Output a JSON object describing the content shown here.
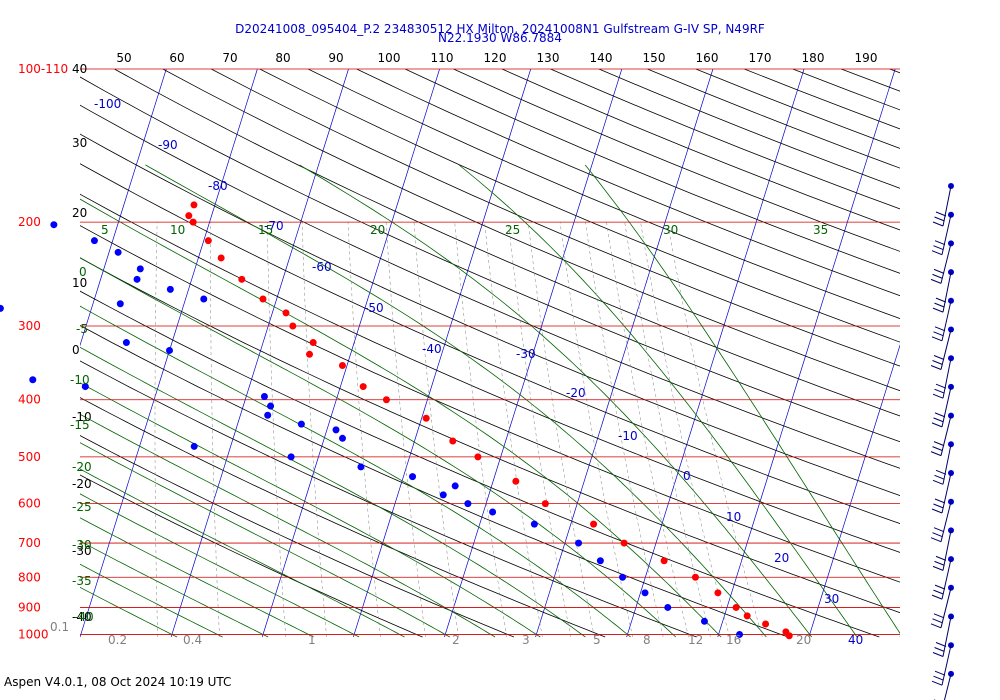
{
  "title": {
    "line1": "D20241008_095404_P.2 234830512 HX Milton, 20241008N1 Gulfstream G-IV SP, N49RF",
    "line2": "N22.1930 W86.7884"
  },
  "footer": "Aspen V4.0.1, 08 Oct 2024  10:19 UTC",
  "chart_data": {
    "type": "skew-t",
    "pressure_labels": [
      "100-110",
      "200",
      "300",
      "400",
      "500",
      "600",
      "700",
      "800",
      "900",
      "1000"
    ],
    "pressure_levels_hpa": [
      110,
      200,
      300,
      400,
      500,
      600,
      700,
      800,
      900,
      1000
    ],
    "top_temperature_labels": [
      "50",
      "60",
      "70",
      "80",
      "90",
      "100",
      "110",
      "120",
      "130",
      "140",
      "150",
      "160",
      "170",
      "180",
      "190"
    ],
    "left_temperature_labels": [
      "40",
      "30",
      "20",
      "10",
      "0",
      "-10",
      "-20",
      "-30",
      "-40"
    ],
    "isotherm_labels": [
      "-100",
      "-90",
      "-80",
      "-70",
      "-60",
      "-50",
      "-40",
      "-30",
      "-20",
      "-10",
      "0",
      "10",
      "20",
      "30",
      "40"
    ],
    "dry_adiabat_labels": [
      "5",
      "10",
      "15",
      "20",
      "25",
      "30",
      "35"
    ],
    "moist_adiabat_labels": [
      "0",
      "-5",
      "-10",
      "-15",
      "-20",
      "-25",
      "-30",
      "-35",
      "-40"
    ],
    "mixing_ratio_labels": [
      "0.1",
      "0.2",
      "0.4",
      "1",
      "2",
      "3",
      "5",
      "8",
      "12",
      "16",
      "20"
    ],
    "temperature_profile": [
      [
        187,
        -52.3
      ],
      [
        195,
        -52.5
      ],
      [
        200,
        -51.8
      ],
      [
        215,
        -49.5
      ],
      [
        230,
        -47.5
      ],
      [
        250,
        -44.5
      ],
      [
        270,
        -41.5
      ],
      [
        285,
        -38.5
      ],
      [
        300,
        -37.3
      ],
      [
        320,
        -34.5
      ],
      [
        335,
        -34.5
      ],
      [
        350,
        -30.5
      ],
      [
        380,
        -27.5
      ],
      [
        400,
        -24.5
      ],
      [
        430,
        -19.5
      ],
      [
        470,
        -15.8
      ],
      [
        500,
        -12.5
      ],
      [
        550,
        -7.5
      ],
      [
        600,
        -3.5
      ],
      [
        650,
        2.5
      ],
      [
        700,
        6.5
      ],
      [
        750,
        11.5
      ],
      [
        800,
        15.5
      ],
      [
        850,
        18.5
      ],
      [
        900,
        21
      ],
      [
        930,
        22.5
      ],
      [
        960,
        24.8
      ],
      [
        990,
        27.3
      ],
      [
        1005,
        27.8
      ]
    ],
    "dewpoint_profile": [
      [
        202,
        -67
      ],
      [
        215,
        -62
      ],
      [
        225,
        -59
      ],
      [
        240,
        -56
      ],
      [
        250,
        -56
      ],
      [
        260,
        -52
      ],
      [
        270,
        -48
      ],
      [
        275,
        -57
      ],
      [
        280,
        -70
      ],
      [
        290,
        -85
      ],
      [
        300,
        -83
      ],
      [
        310,
        -77
      ],
      [
        320,
        -55
      ],
      [
        330,
        -50
      ],
      [
        340,
        -70
      ],
      [
        355,
        -72
      ],
      [
        370,
        -64
      ],
      [
        380,
        -58
      ],
      [
        395,
        -38
      ],
      [
        410,
        -37
      ],
      [
        425,
        -37
      ],
      [
        440,
        -33
      ],
      [
        450,
        -29
      ],
      [
        465,
        -28
      ],
      [
        480,
        -44
      ],
      [
        500,
        -33
      ],
      [
        520,
        -25
      ],
      [
        540,
        -19
      ],
      [
        560,
        -14
      ],
      [
        580,
        -15
      ],
      [
        600,
        -12
      ],
      [
        620,
        -9
      ],
      [
        650,
        -4
      ],
      [
        700,
        1.5
      ],
      [
        750,
        4.5
      ],
      [
        800,
        7.5
      ],
      [
        850,
        10.5
      ],
      [
        900,
        13.5
      ],
      [
        950,
        18
      ],
      [
        1000,
        22.3
      ]
    ],
    "wind_barb_count": 18,
    "x_range_t_surface_c": [
      -50,
      40
    ],
    "y_range_hpa": [
      110,
      1010
    ],
    "log_pressure_axis": true,
    "colors": {
      "temperature": "#ff0000",
      "dewpoint": "#0000ff",
      "isobar": "#d00000",
      "isotherm": "#0000cc",
      "dry_adiabat": "#000000",
      "moist_adiabat": "#006400",
      "mixing_ratio": "#808080",
      "wind": "#0000cc"
    }
  }
}
